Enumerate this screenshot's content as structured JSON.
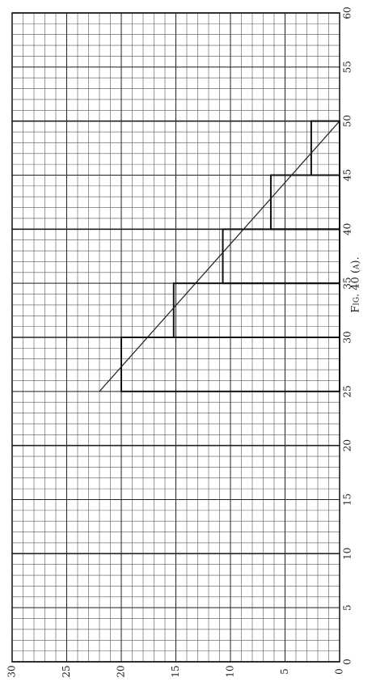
{
  "chart_data": {
    "type": "histogram",
    "caption": "Fig. 40 (a).",
    "bins": [
      25,
      30,
      35,
      40,
      45,
      50
    ],
    "values": [
      20,
      15.2,
      10.7,
      6.3,
      2.6
    ],
    "color": "#111",
    "line": {
      "x": [
        25,
        50
      ],
      "values": [
        22,
        0
      ],
      "color": "#222"
    },
    "xlim": [
      0,
      60
    ],
    "xticks": [
      0,
      5,
      10,
      15,
      20,
      25,
      30,
      35,
      40,
      45,
      50,
      55,
      60
    ],
    "ylim": [
      0,
      30
    ],
    "yticks": [
      0,
      5,
      10,
      15,
      20,
      25,
      30
    ],
    "grid": true,
    "rotated": true
  }
}
